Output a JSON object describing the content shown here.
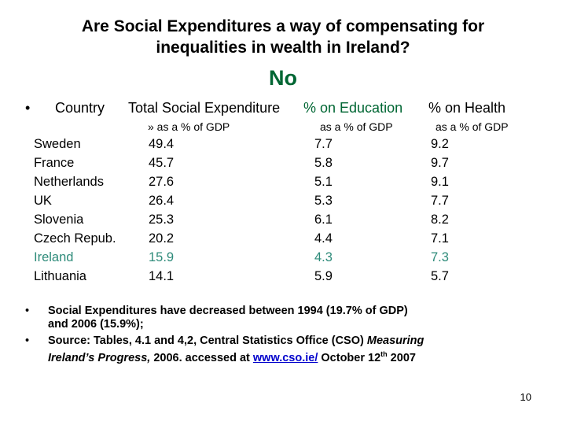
{
  "title": {
    "line1": "Are Social Expenditures a way of compensating for",
    "line2": "inequalities in wealth in Ireland?"
  },
  "answer": "No",
  "header": {
    "bullet": "•",
    "country": "Country",
    "total": "Total Social Expenditure",
    "education": "% on Education",
    "health": "% on Health",
    "total_sub": "» as a % of GDP",
    "education_sub": "as a % of GDP",
    "health_sub": "as a % of GDP"
  },
  "rows": [
    {
      "country": "Sweden",
      "total": "49.4",
      "education": "7.7",
      "health": "9.2"
    },
    {
      "country": "France",
      "total": "45.7",
      "education": "5.8",
      "health": "9.7"
    },
    {
      "country": "Netherlands",
      "total": "27.6",
      "education": "5.1",
      "health": "9.1"
    },
    {
      "country": "UK",
      "total": "26.4",
      "education": "5.3",
      "health": "7.7"
    },
    {
      "country": "Slovenia",
      "total": "25.3",
      "education": "6.1",
      "health": "8.2"
    },
    {
      "country": "Czech Repub.",
      "total": "20.2",
      "education": "4.4",
      "health": "7.1"
    },
    {
      "country": "Ireland",
      "total": "15.9",
      "education": "4.3",
      "health": "7.3"
    },
    {
      "country": "Lithuania",
      "total": "14.1",
      "education": "5.9",
      "health": "5.7"
    }
  ],
  "bullets": {
    "b1_line1": "Social Expenditures have decreased  between 1994 (19.7% of GDP)",
    "b1_line2": "and 2006 (15.9%);",
    "b2_prefix": "Source: Tables, 4.1 and 4,2, Central Statistics Office (CSO) ",
    "b2_title_1": "Measuring",
    "b2_title_2": "Ireland’s Progress,",
    "b2_mid": " 2006. accessed at ",
    "b2_link": "www.cso.ie/",
    "b2_date": " October 12",
    "b2_sup": "th",
    "b2_year": " 2007"
  },
  "page_number": "10",
  "colors": {
    "answer": "#006633",
    "ireland_highlight": "#2e8b7a",
    "link": "#0000cc"
  }
}
